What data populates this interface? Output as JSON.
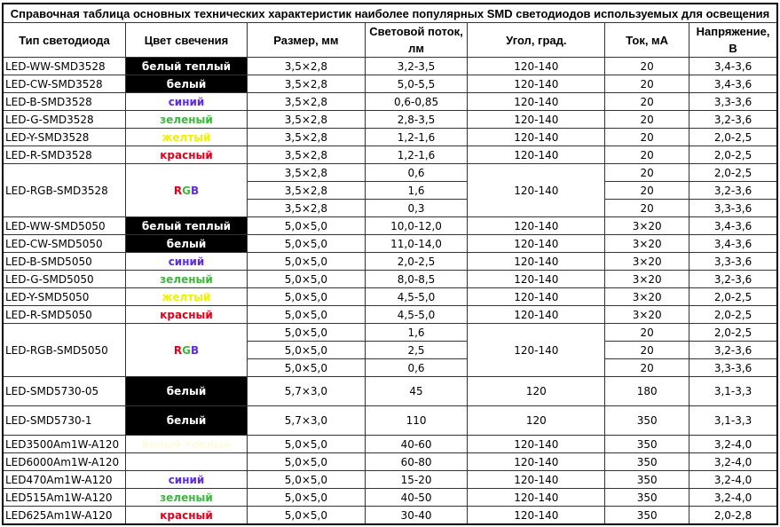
{
  "title": "Справочная таблица основных технических характеристик наиболее популярных SMD светодиодов используемых для освещения",
  "headers": [
    "Тип светодиода",
    "Цвет свечения",
    "Размер, мм",
    "Световой поток, лм",
    "Угол, град.",
    "Ток, мА",
    "Напряжение, В"
  ],
  "colors": {
    "black_bg": "#000000",
    "white": "#ffffff",
    "blue": "#5b2ee0",
    "green": "#3cb83c",
    "yellow": "#f0f000",
    "red": "#e0001a",
    "pale": "#fffbe0",
    "rgb_r": "#e0001a",
    "rgb_g": "#3cb83c",
    "rgb_b": "#5b2ee0"
  },
  "rows": [
    {
      "type": "LED-WW-SMD3528",
      "color": "белый теплый",
      "style": "black_bg",
      "size": "3,5×2,8",
      "flux": "3,2-3,5",
      "angle": "120-140",
      "current": "20",
      "voltage": "3,4-3,6"
    },
    {
      "type": "LED-CW-SMD3528",
      "color": "белый",
      "style": "black_bg",
      "size": "3,5×2,8",
      "flux": "5,0-5,5",
      "angle": "120-140",
      "current": "20",
      "voltage": "3,4-3,6"
    },
    {
      "type": "LED-B-SMD3528",
      "color": "синий",
      "style": "blue",
      "size": "3,5×2,8",
      "flux": "0,6-0,85",
      "angle": "120-140",
      "current": "20",
      "voltage": "3,3-3,6"
    },
    {
      "type": "LED-G-SMD3528",
      "color": "зеленый",
      "style": "green",
      "size": "3,5×2,8",
      "flux": "2,8-3,5",
      "angle": "120-140",
      "current": "20",
      "voltage": "3,2-3,6"
    },
    {
      "type": "LED-Y-SMD3528",
      "color": "желтый",
      "style": "yellow",
      "size": "3,5×2,8",
      "flux": "1,2-1,6",
      "angle": "120-140",
      "current": "20",
      "voltage": "2,0-2,5"
    },
    {
      "type": "LED-R-SMD3528",
      "color": "красный",
      "style": "red",
      "size": "3,5×2,8",
      "flux": "1,2-1,6",
      "angle": "120-140",
      "current": "20",
      "voltage": "2,0-2,5"
    },
    {
      "type": "LED-RGB-SMD3528",
      "color": "RGB",
      "style": "rgb",
      "angle": "120-140",
      "sub": [
        {
          "size": "3,5×2,8",
          "flux": "0,6",
          "current": "20",
          "voltage": "2,0-2,5"
        },
        {
          "size": "3,5×2,8",
          "flux": "1,6",
          "current": "20",
          "voltage": "3,2-3,6"
        },
        {
          "size": "3,5×2,8",
          "flux": "0,3",
          "current": "20",
          "voltage": "3,3-3,6"
        }
      ]
    },
    {
      "type": "LED-WW-SMD5050",
      "color": "белый теплый",
      "style": "black_bg",
      "size": "5,0×5,0",
      "flux": "10,0-12,0",
      "angle": "120-140",
      "current": "3×20",
      "voltage": "3,4-3,6"
    },
    {
      "type": "LED-CW-SMD5050",
      "color": "белый",
      "style": "black_bg",
      "size": "5,0×5,0",
      "flux": "11,0-14,0",
      "angle": "120-140",
      "current": "3×20",
      "voltage": "3,4-3,6"
    },
    {
      "type": "LED-B-SMD5050",
      "color": "синий",
      "style": "blue",
      "size": "5,0×5,0",
      "flux": "2,0-2,5",
      "angle": "120-140",
      "current": "3×20",
      "voltage": "3,3-3,6"
    },
    {
      "type": "LED-G-SMD5050",
      "color": "зеленый",
      "style": "green",
      "size": "5,0×5,0",
      "flux": "8,0-8,5",
      "angle": "120-140",
      "current": "3×20",
      "voltage": "3,2-3,6"
    },
    {
      "type": "LED-Y-SMD5050",
      "color": "желтый",
      "style": "yellow",
      "size": "5,0×5,0",
      "flux": "4,5-5,0",
      "angle": "120-140",
      "current": "3×20",
      "voltage": "2,0-2,5"
    },
    {
      "type": "LED-R-SMD5050",
      "color": "красный",
      "style": "red",
      "size": "5,0×5,0",
      "flux": "4,5-5,0",
      "angle": "120-140",
      "current": "3×20",
      "voltage": "2,0-2,5"
    },
    {
      "type": "LED-RGB-SMD5050",
      "color": "RGB",
      "style": "rgb",
      "angle": "120-140",
      "sub": [
        {
          "size": "5,0×5,0",
          "flux": "1,6",
          "current": "20",
          "voltage": "2,0-2,5"
        },
        {
          "size": "5,0×5,0",
          "flux": "2,5",
          "current": "20",
          "voltage": "3,2-3,6"
        },
        {
          "size": "5,0×5,0",
          "flux": "0,6",
          "current": "20",
          "voltage": "3,3-3,6"
        }
      ]
    },
    {
      "type": "LED-SMD5730-05",
      "color": "белый",
      "style": "black_bg",
      "size": "5,7×3,0",
      "flux": "45",
      "angle": "120",
      "current": "180",
      "voltage": "3,1-3,3",
      "tall": true
    },
    {
      "type": "LED-SMD5730-1",
      "color": "белый",
      "style": "black_bg",
      "size": "5,7×3,0",
      "flux": "110",
      "angle": "120",
      "current": "350",
      "voltage": "3,1-3,3",
      "tall": true
    },
    {
      "type": "LED3500Am1W-A120",
      "color": "белый теплый",
      "style": "pale",
      "size": "5,0×5,0",
      "flux": "40-60",
      "angle": "120-140",
      "current": "350",
      "voltage": "3,2-4,0"
    },
    {
      "type": "LED6000Am1W-A120",
      "color": "",
      "style": "white",
      "size": "5,0×5,0",
      "flux": "60-80",
      "angle": "120-140",
      "current": "350",
      "voltage": "3,2-4,0"
    },
    {
      "type": "LED470Am1W-A120",
      "color": "синий",
      "style": "blue",
      "size": "5,0×5,0",
      "flux": "15-20",
      "angle": "120-140",
      "current": "350",
      "voltage": "3,2-4,0"
    },
    {
      "type": "LED515Am1W-A120",
      "color": "зеленый",
      "style": "green",
      "size": "5,0×5,0",
      "flux": "40-50",
      "angle": "120-140",
      "current": "350",
      "voltage": "3,2-4,0"
    },
    {
      "type": "LED625Am1W-A120",
      "color": "красный",
      "style": "red",
      "size": "5,0×5,0",
      "flux": "30-40",
      "angle": "120-140",
      "current": "350",
      "voltage": "2,0-2,8"
    }
  ]
}
